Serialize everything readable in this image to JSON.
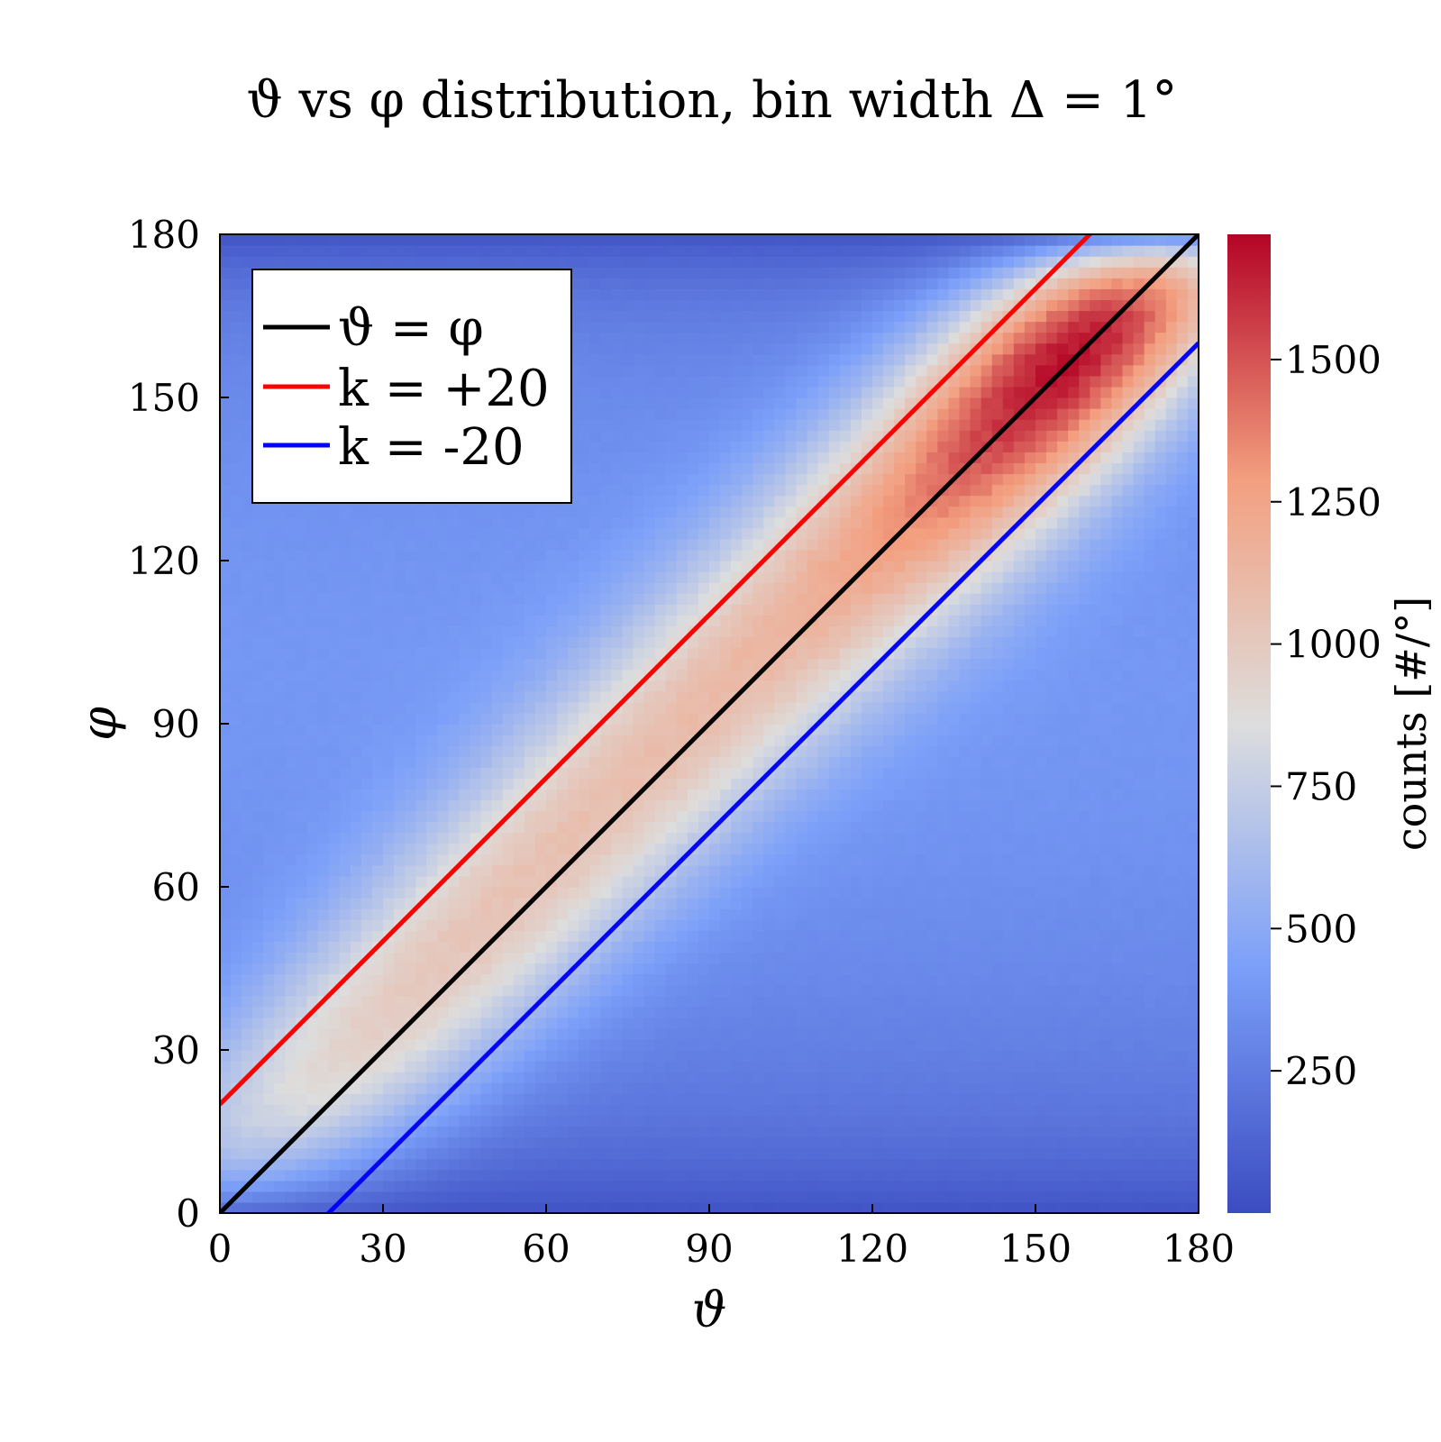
{
  "chart_data": {
    "type": "heatmap",
    "title": "ϑ vs φ distribution, bin width Δ = 1°",
    "xlabel": "ϑ",
    "ylabel": "φ",
    "xlim": [
      0,
      180
    ],
    "ylim": [
      0,
      180
    ],
    "x_ticks": [
      "0",
      "30",
      "60",
      "90",
      "120",
      "150",
      "180"
    ],
    "y_ticks": [
      "0",
      "30",
      "60",
      "90",
      "120",
      "150",
      "180"
    ],
    "bin_width_deg": 1,
    "colormap": "coolwarm",
    "colorbar": {
      "label": "counts [#/°]",
      "range": [
        0,
        1720
      ],
      "ticks": [
        "250",
        "500",
        "750",
        "1000",
        "1250",
        "1500"
      ],
      "tick_values": [
        250,
        500,
        750,
        1000,
        1250,
        1500
      ]
    },
    "lines": [
      {
        "name": "ϑ = φ",
        "color": "#000000",
        "offset": 0
      },
      {
        "name": "k = +20",
        "color": "#ff0000",
        "offset": 20
      },
      {
        "name": "k = -20",
        "color": "#0000ff",
        "offset": -20
      }
    ],
    "legend_position": "top-left",
    "density_model": {
      "ridge": "φ = ϑ + 5",
      "peak_at": [
        172,
        152
      ],
      "peak_value": 1700,
      "low_value": 40
    }
  }
}
